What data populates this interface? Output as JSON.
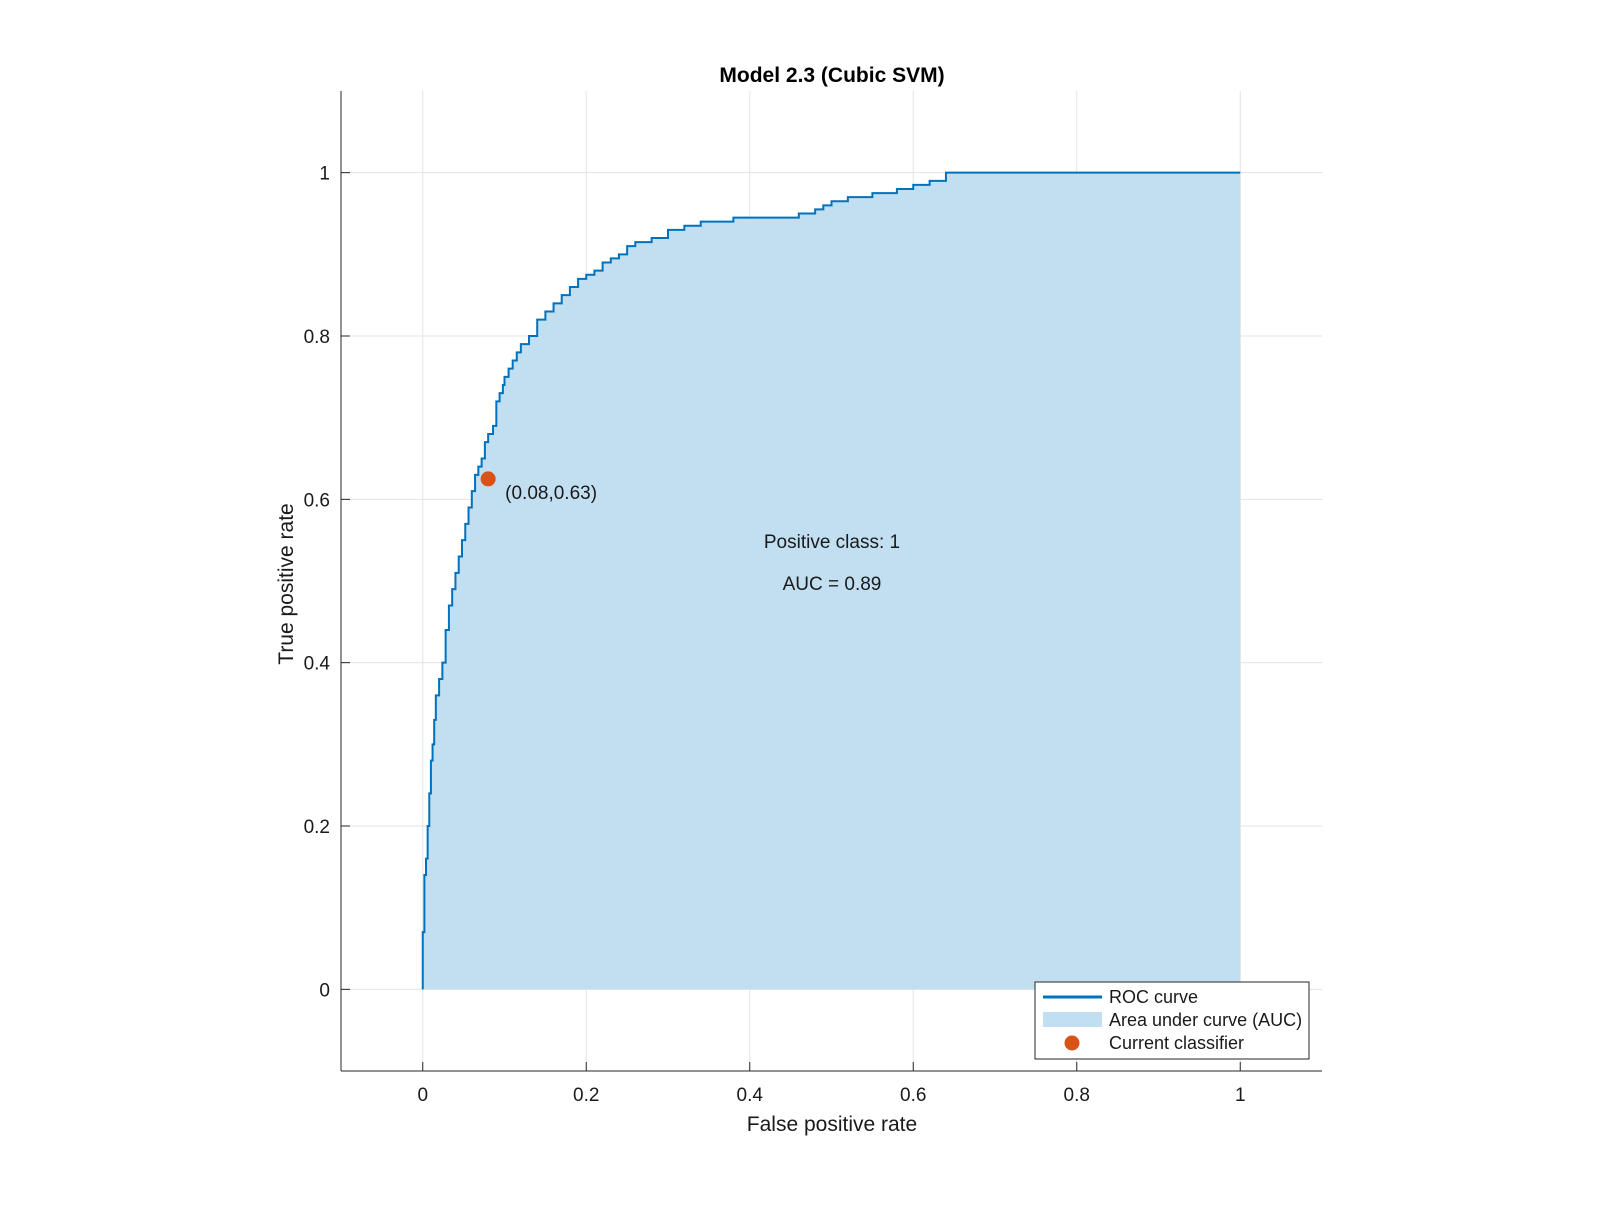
{
  "chart_data": {
    "type": "area",
    "title": "Model 2.3 (Cubic SVM)",
    "xlabel": "False positive rate",
    "ylabel": "True positive rate",
    "xlim": [
      -0.1,
      1.1
    ],
    "ylim": [
      -0.1,
      1.1
    ],
    "xticks": [
      0,
      0.2,
      0.4,
      0.6,
      0.8,
      1
    ],
    "yticks": [
      0,
      0.2,
      0.4,
      0.6,
      0.8,
      1
    ],
    "xtick_labels": [
      "0",
      "0.2",
      "0.4",
      "0.6",
      "0.8",
      "1"
    ],
    "ytick_labels": [
      "0",
      "0.2",
      "0.4",
      "0.6",
      "0.8",
      "1"
    ],
    "grid": true,
    "legend_position": "bottom-right",
    "legend": [
      "ROC curve",
      "Area under curve (AUC)",
      "Current classifier"
    ],
    "colors": {
      "curve": "#0072bd",
      "area": "#c2dff2",
      "point": "#d95319",
      "grid": "#e3e3e3"
    },
    "series": [
      {
        "name": "ROC curve",
        "x": [
          0,
          0,
          0.002,
          0.004,
          0.006,
          0.008,
          0.01,
          0.012,
          0.014,
          0.016,
          0.02,
          0.024,
          0.028,
          0.032,
          0.036,
          0.04,
          0.044,
          0.048,
          0.052,
          0.056,
          0.06,
          0.064,
          0.068,
          0.072,
          0.076,
          0.08,
          0.086,
          0.09,
          0.094,
          0.098,
          0.1,
          0.105,
          0.11,
          0.115,
          0.12,
          0.13,
          0.14,
          0.15,
          0.16,
          0.17,
          0.18,
          0.19,
          0.2,
          0.21,
          0.22,
          0.23,
          0.24,
          0.25,
          0.26,
          0.28,
          0.3,
          0.32,
          0.34,
          0.36,
          0.38,
          0.4,
          0.42,
          0.46,
          0.48,
          0.49,
          0.5,
          0.52,
          0.55,
          0.58,
          0.6,
          0.62,
          0.64,
          0.66,
          0.7,
          0.75,
          0.8,
          0.9,
          1.0
        ],
        "y": [
          0,
          0.07,
          0.14,
          0.16,
          0.2,
          0.24,
          0.28,
          0.3,
          0.33,
          0.36,
          0.38,
          0.4,
          0.44,
          0.47,
          0.49,
          0.51,
          0.53,
          0.55,
          0.57,
          0.59,
          0.61,
          0.63,
          0.64,
          0.65,
          0.67,
          0.68,
          0.69,
          0.72,
          0.73,
          0.74,
          0.75,
          0.76,
          0.77,
          0.78,
          0.79,
          0.8,
          0.82,
          0.83,
          0.84,
          0.85,
          0.86,
          0.87,
          0.875,
          0.88,
          0.89,
          0.895,
          0.9,
          0.91,
          0.915,
          0.92,
          0.93,
          0.935,
          0.94,
          0.94,
          0.945,
          0.945,
          0.945,
          0.95,
          0.955,
          0.96,
          0.965,
          0.97,
          0.975,
          0.98,
          0.985,
          0.99,
          1.0,
          1.0,
          1.0,
          1.0,
          1.0,
          1.0,
          1.0
        ]
      }
    ],
    "current_classifier": {
      "x": 0.08,
      "y": 0.625,
      "label": "(0.08,0.63)"
    },
    "annotations": [
      "Positive class: 1",
      "AUC = 0.89"
    ]
  }
}
